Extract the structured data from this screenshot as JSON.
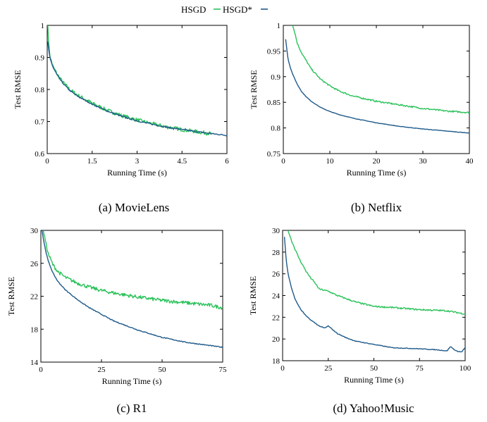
{
  "legend": {
    "entries": [
      {
        "label": "HSGD",
        "color": "#2bc25a"
      },
      {
        "label": "HSGD*",
        "color": "#1f5a8a"
      }
    ]
  },
  "chart_data": [
    {
      "type": "line",
      "caption": "(a)  MovieLens",
      "xlabel": "Running Time (s)",
      "ylabel": "Test RMSE",
      "xlim": [
        0,
        6
      ],
      "ylim": [
        0.6,
        1
      ],
      "xticks": [
        0,
        1.5,
        3,
        4.5,
        6
      ],
      "xtick_labels": [
        "0",
        "1.5",
        "3",
        "4.5",
        "6"
      ],
      "yticks": [
        0.6,
        0.7,
        0.8,
        0.9,
        1
      ],
      "ytick_labels": [
        "0.6",
        "0.7",
        "0.8",
        "0.9",
        "1"
      ],
      "series": [
        {
          "name": "HSGD",
          "color": "#2bc25a",
          "noise": 0.006,
          "x": [
            0.02,
            0.05,
            0.1,
            0.2,
            0.35,
            0.5,
            0.75,
            1,
            1.5,
            2,
            2.5,
            3,
            3.5,
            4,
            4.5,
            5,
            5.5
          ],
          "y": [
            1.0,
            0.94,
            0.9,
            0.87,
            0.845,
            0.825,
            0.8,
            0.783,
            0.757,
            0.735,
            0.718,
            0.705,
            0.693,
            0.683,
            0.675,
            0.668,
            0.662
          ]
        },
        {
          "name": "HSGD*",
          "color": "#1f5a8a",
          "noise": 0.002,
          "x": [
            0.02,
            0.05,
            0.1,
            0.2,
            0.35,
            0.5,
            0.75,
            1,
            1.5,
            2,
            2.5,
            3,
            3.5,
            4,
            4.5,
            5,
            5.5,
            6
          ],
          "y": [
            0.95,
            0.92,
            0.895,
            0.868,
            0.842,
            0.822,
            0.797,
            0.78,
            0.754,
            0.733,
            0.716,
            0.702,
            0.692,
            0.682,
            0.675,
            0.668,
            0.662,
            0.657
          ]
        }
      ]
    },
    {
      "type": "line",
      "caption": "(b)  Netflix",
      "xlabel": "Running Time (s)",
      "ylabel": "Test RMSE",
      "xlim": [
        0,
        40
      ],
      "ylim": [
        0.75,
        1
      ],
      "xticks": [
        0,
        10,
        20,
        30,
        40
      ],
      "xtick_labels": [
        "0",
        "10",
        "20",
        "30",
        "40"
      ],
      "yticks": [
        0.75,
        0.8,
        0.85,
        0.9,
        0.95,
        1
      ],
      "ytick_labels": [
        "0.75",
        "0.8",
        "0.85",
        "0.9",
        "0.95",
        "1"
      ],
      "series": [
        {
          "name": "HSGD",
          "color": "#2bc25a",
          "noise": 0.0015,
          "x": [
            2.0,
            2.5,
            3,
            4,
            5,
            6,
            8,
            10,
            12,
            15,
            20,
            25,
            30,
            35,
            40
          ],
          "y": [
            1.0,
            0.985,
            0.965,
            0.945,
            0.93,
            0.915,
            0.895,
            0.882,
            0.872,
            0.862,
            0.852,
            0.845,
            0.838,
            0.833,
            0.83
          ]
        },
        {
          "name": "HSGD*",
          "color": "#1f5a8a",
          "noise": 0.0004,
          "x": [
            0.5,
            1,
            1.5,
            2,
            3,
            4,
            5,
            6,
            8,
            10,
            12,
            15,
            20,
            25,
            30,
            35,
            40
          ],
          "y": [
            0.973,
            0.935,
            0.918,
            0.905,
            0.885,
            0.87,
            0.86,
            0.852,
            0.84,
            0.832,
            0.826,
            0.819,
            0.81,
            0.803,
            0.798,
            0.794,
            0.79
          ]
        }
      ]
    },
    {
      "type": "line",
      "caption": "(c)  R1",
      "xlabel": "Running Time (s)",
      "ylabel": "Test RMSE",
      "xlim": [
        0,
        75
      ],
      "ylim": [
        14,
        30
      ],
      "xticks": [
        0,
        25,
        50,
        75
      ],
      "xtick_labels": [
        "0",
        "25",
        "50",
        "75"
      ],
      "yticks": [
        14,
        18,
        22,
        26,
        30
      ],
      "ytick_labels": [
        "14",
        "18",
        "22",
        "26",
        "30"
      ],
      "series": [
        {
          "name": "HSGD",
          "color": "#2bc25a",
          "noise": 0.22,
          "x": [
            1,
            2,
            3,
            5,
            7,
            10,
            15,
            20,
            25,
            30,
            40,
            50,
            60,
            70,
            75
          ],
          "y": [
            30,
            28.5,
            27.2,
            25.8,
            25.0,
            24.3,
            23.6,
            23.1,
            22.7,
            22.4,
            21.9,
            21.5,
            21.2,
            20.9,
            20.6
          ]
        },
        {
          "name": "HSGD*",
          "color": "#1f5a8a",
          "noise": 0.05,
          "x": [
            0.5,
            1,
            2,
            3,
            5,
            7,
            10,
            15,
            20,
            25,
            30,
            40,
            50,
            60,
            70,
            75
          ],
          "y": [
            30,
            29,
            27.5,
            26.3,
            24.8,
            23.8,
            22.8,
            21.6,
            20.6,
            19.8,
            19.0,
            17.9,
            17.0,
            16.4,
            16.0,
            15.8
          ]
        }
      ]
    },
    {
      "type": "line",
      "caption": "(d)  Yahoo!Music",
      "xlabel": "Running Time (s)",
      "ylabel": "Test RMSE",
      "xlim": [
        0,
        100
      ],
      "ylim": [
        18,
        30
      ],
      "xticks": [
        0,
        25,
        50,
        75,
        100
      ],
      "xtick_labels": [
        "0",
        "25",
        "50",
        "75",
        "100"
      ],
      "yticks": [
        18,
        20,
        22,
        24,
        26,
        28,
        30
      ],
      "ytick_labels": [
        "18",
        "20",
        "22",
        "24",
        "26",
        "28",
        "30"
      ],
      "series": [
        {
          "name": "HSGD",
          "color": "#2bc25a",
          "noise": 0.07,
          "x": [
            3,
            5,
            8,
            10,
            13,
            15,
            18,
            20,
            25,
            30,
            35,
            40,
            50,
            60,
            75,
            90,
            100
          ],
          "y": [
            30,
            29.0,
            27.8,
            27.1,
            26.2,
            25.7,
            25.1,
            24.6,
            24.4,
            24.0,
            23.7,
            23.4,
            23.0,
            22.9,
            22.7,
            22.6,
            22.3
          ]
        },
        {
          "name": "HSGD*",
          "color": "#1f5a8a",
          "noise": 0.03,
          "x": [
            1,
            2,
            3,
            5,
            7,
            10,
            13,
            15,
            20,
            23,
            25,
            30,
            35,
            40,
            50,
            60,
            75,
            85,
            90,
            92,
            95,
            98,
            100
          ],
          "y": [
            29.4,
            27.2,
            26.0,
            24.6,
            23.6,
            22.7,
            22.1,
            21.8,
            21.2,
            21.0,
            21.2,
            20.5,
            20.1,
            19.8,
            19.5,
            19.2,
            19.1,
            19.0,
            18.9,
            19.3,
            18.9,
            18.8,
            19.2
          ]
        }
      ]
    }
  ]
}
